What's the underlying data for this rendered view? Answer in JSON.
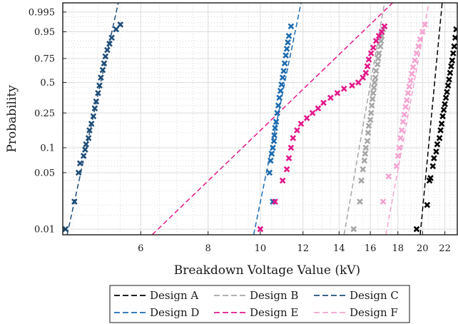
{
  "chart_data": {
    "type": "scatter",
    "title": "",
    "xlabel": "Breakdown Voltage Value (kV)",
    "ylabel": "Probability",
    "x_scale": "log",
    "y_scale": "weibull-probability",
    "xlim": [
      4.3,
      23.2
    ],
    "ylim": [
      0.0085,
      0.999
    ],
    "x_ticks": [
      6,
      8,
      10,
      12,
      14,
      16,
      18,
      20,
      22
    ],
    "x_tick_labels": [
      "6",
      "8",
      "10",
      "12",
      "14",
      "16",
      "18",
      "20",
      "22"
    ],
    "y_ticks": [
      0.01,
      0.05,
      0.1,
      0.25,
      0.5,
      0.75,
      0.95,
      0.995
    ],
    "y_tick_labels": [
      "0.01",
      "0.05",
      "0.1",
      "0.25",
      "0.5",
      "0.75",
      "0.95",
      "0.995"
    ],
    "grid": true,
    "legend_position": "bottom-center",
    "marker": "x",
    "series": [
      {
        "name": "Design A",
        "color": "#000000",
        "fit_line": [
          [
            19.8,
            0.0085
          ],
          [
            21.75,
            0.999
          ]
        ],
        "points": [
          [
            19.5,
            0.01
          ],
          [
            20.4,
            0.02
          ],
          [
            20.6,
            0.04
          ],
          [
            20.7,
            0.043
          ],
          [
            20.9,
            0.06
          ],
          [
            21.0,
            0.075
          ],
          [
            21.2,
            0.09
          ],
          [
            21.3,
            0.11
          ],
          [
            21.5,
            0.13
          ],
          [
            21.6,
            0.16
          ],
          [
            21.7,
            0.19
          ],
          [
            21.8,
            0.23
          ],
          [
            21.9,
            0.27
          ],
          [
            22.0,
            0.31
          ],
          [
            22.1,
            0.36
          ],
          [
            22.2,
            0.41
          ],
          [
            22.3,
            0.47
          ],
          [
            22.4,
            0.53
          ],
          [
            22.5,
            0.6
          ],
          [
            22.6,
            0.67
          ],
          [
            22.7,
            0.73
          ],
          [
            22.8,
            0.8
          ],
          [
            22.9,
            0.86
          ],
          [
            23.0,
            0.92
          ],
          [
            23.1,
            0.96
          ]
        ]
      },
      {
        "name": "Design B",
        "color": "#a6a6a6",
        "fit_line": [
          [
            14.3,
            0.0085
          ],
          [
            17.0,
            0.999
          ]
        ],
        "points": [
          [
            14.9,
            0.01
          ],
          [
            15.3,
            0.022
          ],
          [
            15.4,
            0.04
          ],
          [
            15.5,
            0.055
          ],
          [
            15.6,
            0.07
          ],
          [
            15.65,
            0.085
          ],
          [
            15.7,
            0.1
          ],
          [
            15.8,
            0.12
          ],
          [
            15.85,
            0.15
          ],
          [
            15.9,
            0.18
          ],
          [
            16.0,
            0.21
          ],
          [
            16.05,
            0.25
          ],
          [
            16.1,
            0.3
          ],
          [
            16.15,
            0.35
          ],
          [
            16.2,
            0.4
          ],
          [
            16.25,
            0.45
          ],
          [
            16.3,
            0.5
          ],
          [
            16.35,
            0.55
          ],
          [
            16.4,
            0.62
          ],
          [
            16.5,
            0.69
          ],
          [
            16.55,
            0.75
          ],
          [
            16.6,
            0.8
          ],
          [
            16.7,
            0.86
          ],
          [
            16.75,
            0.9
          ],
          [
            16.8,
            0.93
          ],
          [
            16.9,
            0.96
          ]
        ]
      },
      {
        "name": "Design C",
        "color": "#1f4e79",
        "fit_line": [
          [
            4.38,
            0.0085
          ],
          [
            5.45,
            0.999
          ]
        ],
        "points": [
          [
            4.35,
            0.01
          ],
          [
            4.52,
            0.022
          ],
          [
            4.6,
            0.05
          ],
          [
            4.63,
            0.065
          ],
          [
            4.7,
            0.08
          ],
          [
            4.73,
            0.095
          ],
          [
            4.75,
            0.11
          ],
          [
            4.8,
            0.13
          ],
          [
            4.82,
            0.16
          ],
          [
            4.86,
            0.19
          ],
          [
            4.9,
            0.23
          ],
          [
            4.93,
            0.28
          ],
          [
            4.96,
            0.33
          ],
          [
            5.0,
            0.4
          ],
          [
            5.03,
            0.47
          ],
          [
            5.06,
            0.55
          ],
          [
            5.1,
            0.63
          ],
          [
            5.13,
            0.7
          ],
          [
            5.16,
            0.77
          ],
          [
            5.2,
            0.83
          ],
          [
            5.25,
            0.88
          ],
          [
            5.3,
            0.92
          ],
          [
            5.4,
            0.96
          ],
          [
            5.5,
            0.975
          ]
        ]
      },
      {
        "name": "Design D",
        "color": "#1c6bb0",
        "fit_line": [
          [
            9.72,
            0.0085
          ],
          [
            11.9,
            0.999
          ]
        ],
        "points": [
          [
            10.55,
            0.022
          ],
          [
            10.4,
            0.05
          ],
          [
            10.45,
            0.07
          ],
          [
            10.5,
            0.085
          ],
          [
            10.55,
            0.1
          ],
          [
            10.6,
            0.12
          ],
          [
            10.62,
            0.14
          ],
          [
            10.65,
            0.17
          ],
          [
            10.7,
            0.2
          ],
          [
            10.75,
            0.25
          ],
          [
            10.8,
            0.3
          ],
          [
            10.85,
            0.36
          ],
          [
            10.9,
            0.42
          ],
          [
            10.95,
            0.48
          ],
          [
            11.0,
            0.55
          ],
          [
            11.05,
            0.62
          ],
          [
            11.1,
            0.7
          ],
          [
            11.15,
            0.78
          ],
          [
            11.2,
            0.84
          ],
          [
            11.25,
            0.89
          ],
          [
            11.3,
            0.93
          ],
          [
            11.4,
            0.97
          ]
        ]
      },
      {
        "name": "Design E",
        "color": "#e3178a",
        "fit_line": [
          [
            6.3,
            0.0085
          ],
          [
            17.6,
            0.999
          ]
        ],
        "points": [
          [
            10.0,
            0.01
          ],
          [
            10.65,
            0.022
          ],
          [
            11.0,
            0.04
          ],
          [
            11.2,
            0.055
          ],
          [
            11.3,
            0.075
          ],
          [
            11.4,
            0.1
          ],
          [
            11.5,
            0.13
          ],
          [
            11.7,
            0.16
          ],
          [
            11.9,
            0.19
          ],
          [
            12.2,
            0.22
          ],
          [
            12.5,
            0.25
          ],
          [
            12.8,
            0.28
          ],
          [
            13.1,
            0.32
          ],
          [
            13.5,
            0.36
          ],
          [
            13.9,
            0.4
          ],
          [
            14.3,
            0.44
          ],
          [
            14.8,
            0.47
          ],
          [
            15.2,
            0.5
          ],
          [
            15.5,
            0.55
          ],
          [
            15.7,
            0.6
          ],
          [
            15.8,
            0.67
          ],
          [
            15.9,
            0.74
          ],
          [
            16.05,
            0.8
          ],
          [
            16.2,
            0.85
          ],
          [
            16.4,
            0.9
          ],
          [
            16.6,
            0.93
          ],
          [
            16.8,
            0.95
          ],
          [
            17.0,
            0.97
          ]
        ]
      },
      {
        "name": "Design F",
        "color": "#f4a3d1",
        "fit_line": [
          [
            17.1,
            0.0085
          ],
          [
            20.55,
            0.999
          ]
        ],
        "points": [
          [
            16.9,
            0.022
          ],
          [
            17.3,
            0.045
          ],
          [
            17.9,
            0.06
          ],
          [
            18.0,
            0.08
          ],
          [
            18.1,
            0.1
          ],
          [
            18.2,
            0.13
          ],
          [
            18.3,
            0.16
          ],
          [
            18.4,
            0.2
          ],
          [
            18.5,
            0.24
          ],
          [
            18.6,
            0.29
          ],
          [
            18.7,
            0.34
          ],
          [
            18.8,
            0.4
          ],
          [
            18.9,
            0.46
          ],
          [
            19.0,
            0.52
          ],
          [
            19.1,
            0.59
          ],
          [
            19.2,
            0.66
          ],
          [
            19.35,
            0.73
          ],
          [
            19.5,
            0.8
          ],
          [
            19.65,
            0.86
          ],
          [
            19.8,
            0.91
          ],
          [
            20.0,
            0.95
          ],
          [
            20.2,
            0.975
          ]
        ]
      }
    ]
  }
}
